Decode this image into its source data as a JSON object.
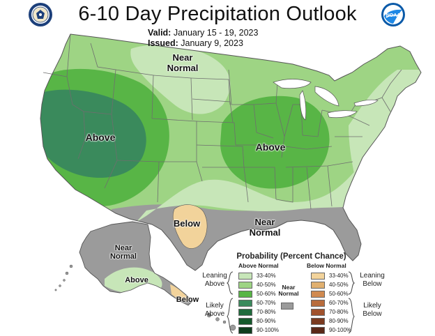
{
  "header": {
    "title": "6-10 Day Precipitation Outlook",
    "valid_label": "Valid:",
    "valid_value": "January 15 - 19, 2023",
    "issued_label": "Issued:",
    "issued_value": "January 9, 2023"
  },
  "logos": {
    "left": "doc-seal-icon",
    "right": "noaa-logo-icon",
    "noaa_text": "NOAA"
  },
  "map": {
    "colors": {
      "a33_40": "#c7e6b8",
      "a40_50": "#9ed484",
      "a50_60": "#58b546",
      "a60_70": "#3a8a5c",
      "a70_80": "#1f6b3c",
      "a80_90": "#155a2c",
      "a90_100": "#0e3d1d",
      "near_normal": "#9b9b9b",
      "b33_40": "#f2d39b",
      "b40_50": "#e0b070",
      "b50_60": "#d08a50",
      "b60_70": "#b86c3c",
      "b70_80": "#a0522d",
      "b80_90": "#7a3a20",
      "b90_100": "#5a2818",
      "state_line": "#6e6e6e",
      "outline": "#555555"
    },
    "labels": {
      "near_normal_north": "Near\nNormal",
      "above_west": "Above",
      "above_central": "Above",
      "below_texas": "Below",
      "near_normal_south": "Near\nNormal",
      "near_normal_alaska": "Near\nNormal",
      "above_alaska": "Above",
      "below_alaska": "Below"
    }
  },
  "legend": {
    "title": "Probability (Percent Chance)",
    "above_header": "Above Normal",
    "below_header": "Below Normal",
    "leaning_above": "Leaning\nAbove",
    "likely_above": "Likely\nAbove",
    "leaning_below": "Leaning\nBelow",
    "likely_below": "Likely\nBelow",
    "near_normal": "Near\nNormal",
    "ranges": [
      "33-40%",
      "40-50%",
      "50-60%",
      "60-70%",
      "70-80%",
      "80-90%",
      "90-100%"
    ],
    "above_colors": [
      "#c7e6b8",
      "#9ed484",
      "#58b546",
      "#3a8a5c",
      "#1f6b3c",
      "#155a2c",
      "#0e3d1d"
    ],
    "below_colors": [
      "#f2d39b",
      "#e0b070",
      "#d08a50",
      "#b86c3c",
      "#a0522d",
      "#7a3a20",
      "#5a2818"
    ]
  }
}
